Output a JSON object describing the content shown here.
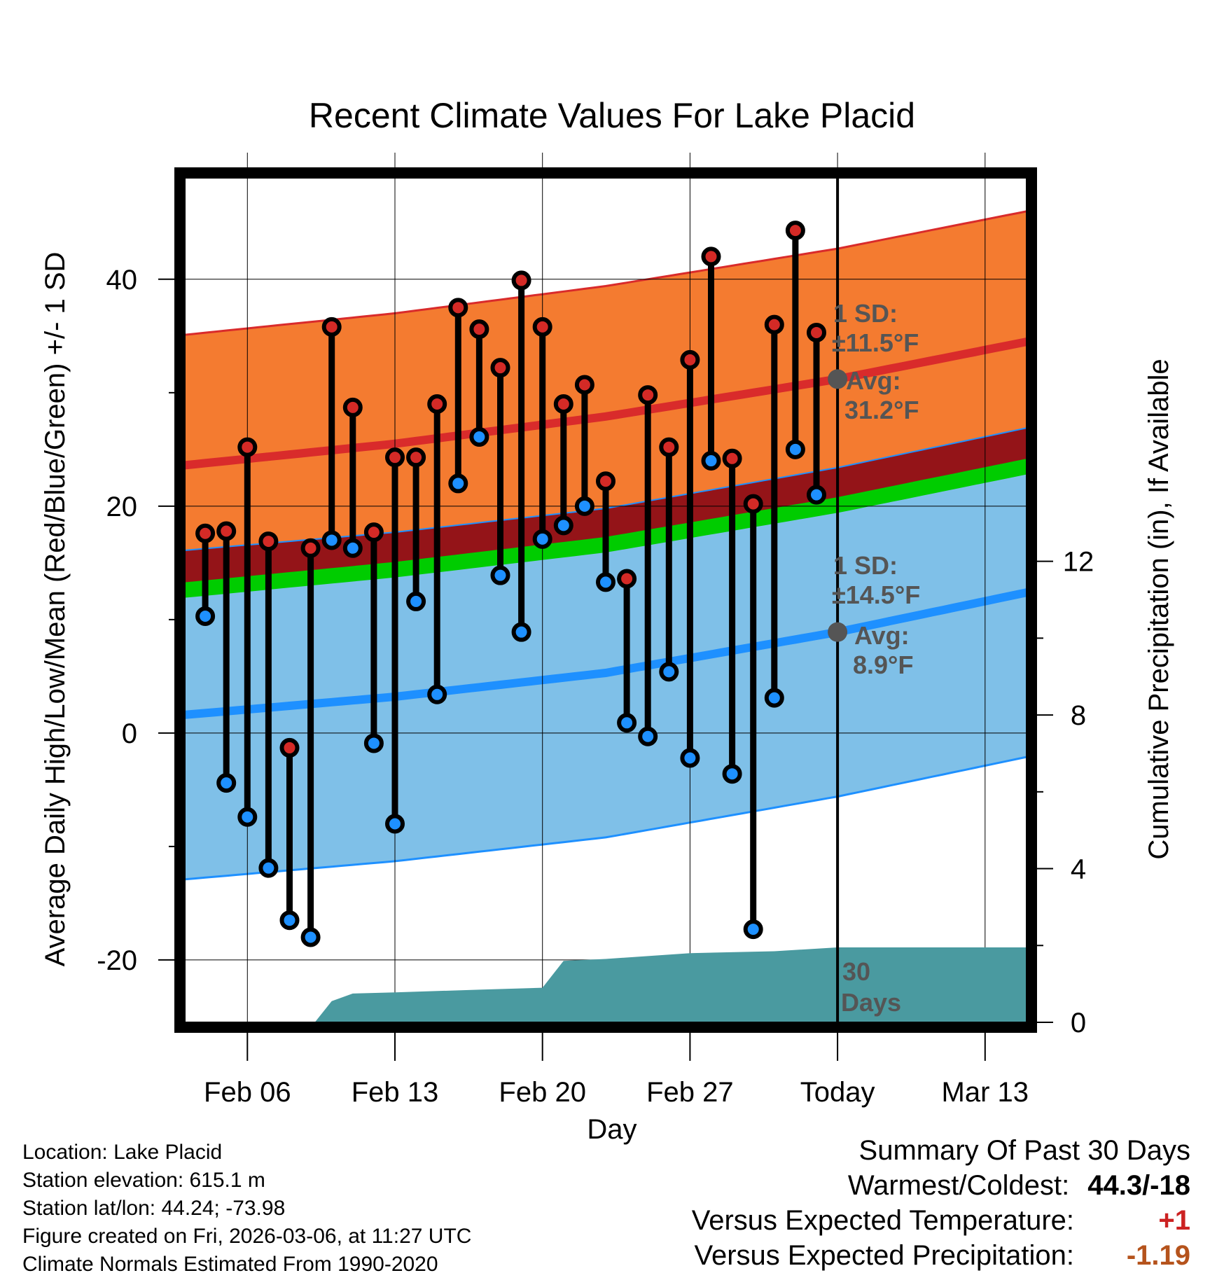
{
  "chart_data": {
    "type": "line",
    "title": "Recent Climate Values For Lake Placid",
    "xlabel": "Day",
    "ylabel": "Average Daily High/Low/Mean (Red/Blue/Green) +/- 1 SD",
    "y2label": "Cumulative Precipitation (in), If Available",
    "xlim": [
      0,
      40
    ],
    "ylim": [
      -25.5,
      49
    ],
    "y2lim": [
      0,
      22
    ],
    "x_ticks": [
      {
        "x": 3,
        "label": "Feb 06"
      },
      {
        "x": 10,
        "label": "Feb 13"
      },
      {
        "x": 17,
        "label": "Feb 20"
      },
      {
        "x": 24,
        "label": "Feb 27"
      },
      {
        "x": 31,
        "label": "Today"
      },
      {
        "x": 38,
        "label": "Mar 13"
      }
    ],
    "y_ticks": [
      -20,
      0,
      20,
      40
    ],
    "y_minor_ticks": [
      -10,
      10,
      30
    ],
    "y2_ticks": [
      0,
      4,
      8,
      12
    ],
    "today_x": 31,
    "normal_high": {
      "x": [
        0,
        10,
        20,
        31,
        40
      ],
      "avg": [
        23.6,
        25.5,
        27.9,
        31.2,
        34.5
      ],
      "upper": [
        35.1,
        37.0,
        39.4,
        42.7,
        46.0
      ],
      "lower": [
        12.1,
        14.0,
        16.4,
        19.7,
        23.0
      ]
    },
    "normal_low": {
      "x": [
        0,
        10,
        20,
        31,
        40
      ],
      "avg": [
        1.6,
        3.2,
        5.3,
        8.9,
        12.4
      ],
      "upper": [
        16.1,
        17.7,
        19.8,
        23.4,
        26.9
      ],
      "lower": [
        -12.9,
        -11.3,
        -9.2,
        -5.6,
        -2.1
      ]
    },
    "normal_mean": {
      "x": [
        0,
        10,
        20,
        31,
        40
      ],
      "avg": [
        12.6,
        14.4,
        16.6,
        20.1,
        23.5
      ]
    },
    "observed_highs": [
      17.6,
      17.8,
      25.2,
      16.9,
      -1.3,
      16.3,
      35.8,
      28.7,
      17.7,
      24.3,
      24.3,
      29.0,
      37.5,
      35.6,
      32.2,
      39.9,
      35.8,
      29.0,
      30.7,
      22.2,
      13.6,
      29.8,
      25.2,
      32.9,
      42.0,
      24.2,
      20.2,
      36.0,
      44.3,
      35.3
    ],
    "observed_lows": [
      10.3,
      -4.4,
      -7.4,
      -11.9,
      -16.5,
      -18.0,
      17.0,
      16.3,
      -0.9,
      -8.0,
      11.6,
      3.4,
      22.0,
      26.1,
      13.9,
      8.9,
      17.1,
      18.3,
      20.0,
      13.3,
      0.9,
      -0.3,
      5.4,
      -2.2,
      24.0,
      -3.6,
      -17.3,
      3.1,
      25.0,
      21.0
    ],
    "obs_start_x": 1,
    "precip": {
      "x": [
        0,
        6.2,
        7.0,
        8.0,
        10.0,
        14.0,
        17.0,
        18.0,
        20.0,
        24.0,
        28.0,
        31.0,
        40.0
      ],
      "y": [
        0,
        0,
        0.55,
        0.75,
        0.78,
        0.85,
        0.9,
        1.6,
        1.65,
        1.8,
        1.85,
        1.95,
        1.95
      ]
    },
    "annotations": {
      "high_sd_label": "1 SD:",
      "high_sd_value": "±11.5°F",
      "high_avg_label": "Avg:",
      "high_avg_value": "31.2°F",
      "low_sd_label": "1 SD:",
      "low_sd_value": "±14.5°F",
      "low_avg_label": "Avg:",
      "low_avg_value": "8.9°F",
      "days_number": "30",
      "days_label": "Days"
    },
    "colors": {
      "high_band": "#f47b30",
      "high_line": "#d92b2b",
      "low_band": "#7fc0e8",
      "low_line": "#1e90ff",
      "overlap_band": "#941418",
      "mean_line": "#00cc00",
      "precip": "#4a9aa0",
      "high_dot": "#d42a26",
      "low_dot": "#1e90ff",
      "avg_marker": "#555555"
    }
  },
  "footer": {
    "location": "Location: Lake Placid",
    "elevation": "Station elevation: 615.1 m",
    "latlon": "Station lat/lon: 44.24; -73.98",
    "created": "Figure created on Fri, 2026-03-06, at 11:27 UTC",
    "normals": "Climate Normals Estimated From 1990-2020"
  },
  "summary": {
    "title": "Summary Of Past 30 Days",
    "warmest_coldest_label": "Warmest/Coldest:",
    "warmest_coldest_value": "44.3/-18",
    "temp_label": "Versus Expected Temperature:",
    "temp_value": "+1",
    "temp_color": "#cc2222",
    "precip_label": "Versus Expected Precipitation:",
    "precip_value": "-1.19",
    "precip_color": "#b5531c"
  }
}
